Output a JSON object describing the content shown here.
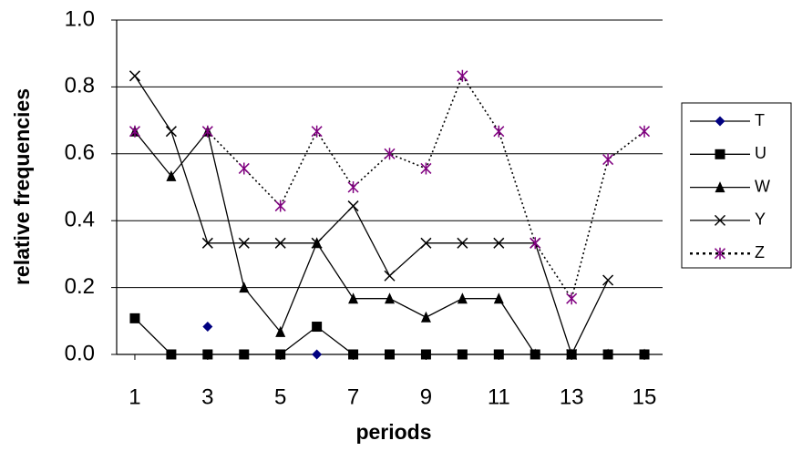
{
  "chart_data": {
    "type": "line",
    "x_label": "periods",
    "y_label": "relative frequencies",
    "x": [
      1,
      2,
      3,
      4,
      5,
      6,
      7,
      8,
      9,
      10,
      11,
      12,
      13,
      14,
      15
    ],
    "xlim": [
      0.5,
      15.5
    ],
    "xticks": [
      1,
      3,
      5,
      7,
      9,
      11,
      13,
      15
    ],
    "ylim": [
      0,
      1
    ],
    "yticks": [
      {
        "value": 0,
        "label": "0.0"
      },
      0.2,
      0.4,
      0.6,
      0.8,
      {
        "value": 1,
        "label": "1.0"
      }
    ],
    "grid": true,
    "legend": "right",
    "series": [
      {
        "name": "T",
        "color": "#000080",
        "marker": "diamond",
        "values": [
          null,
          null,
          0.083,
          null,
          null,
          0,
          null,
          null,
          null,
          null,
          null,
          null,
          null,
          null,
          null
        ]
      },
      {
        "name": "U",
        "color": "#000000",
        "marker": "square",
        "values": [
          0.108,
          0,
          0,
          0,
          0,
          0.083,
          0,
          0,
          0,
          0,
          0,
          0,
          0,
          0,
          0
        ]
      },
      {
        "name": "W",
        "color": "#000000",
        "marker": "triangle",
        "values": [
          0.667,
          0.533,
          0.667,
          0.2,
          0.067,
          0.333,
          0.167,
          0.167,
          0.111,
          0.167,
          0.167,
          0,
          0,
          0,
          0
        ]
      },
      {
        "name": "Y",
        "color": "#000000",
        "marker": "x",
        "values": [
          0.833,
          0.667,
          0.333,
          0.333,
          0.333,
          0.333,
          0.444,
          0.235,
          0.333,
          0.333,
          0.333,
          0.333,
          0,
          0.222,
          null
        ]
      },
      {
        "name": "Z",
        "color": "#800080",
        "marker": "star",
        "dashed": true,
        "values": [
          0.667,
          null,
          0.667,
          0.556,
          0.444,
          0.667,
          0.5,
          0.6,
          0.556,
          0.833,
          0.667,
          0.333,
          0.167,
          0.583,
          0.667
        ]
      }
    ]
  }
}
